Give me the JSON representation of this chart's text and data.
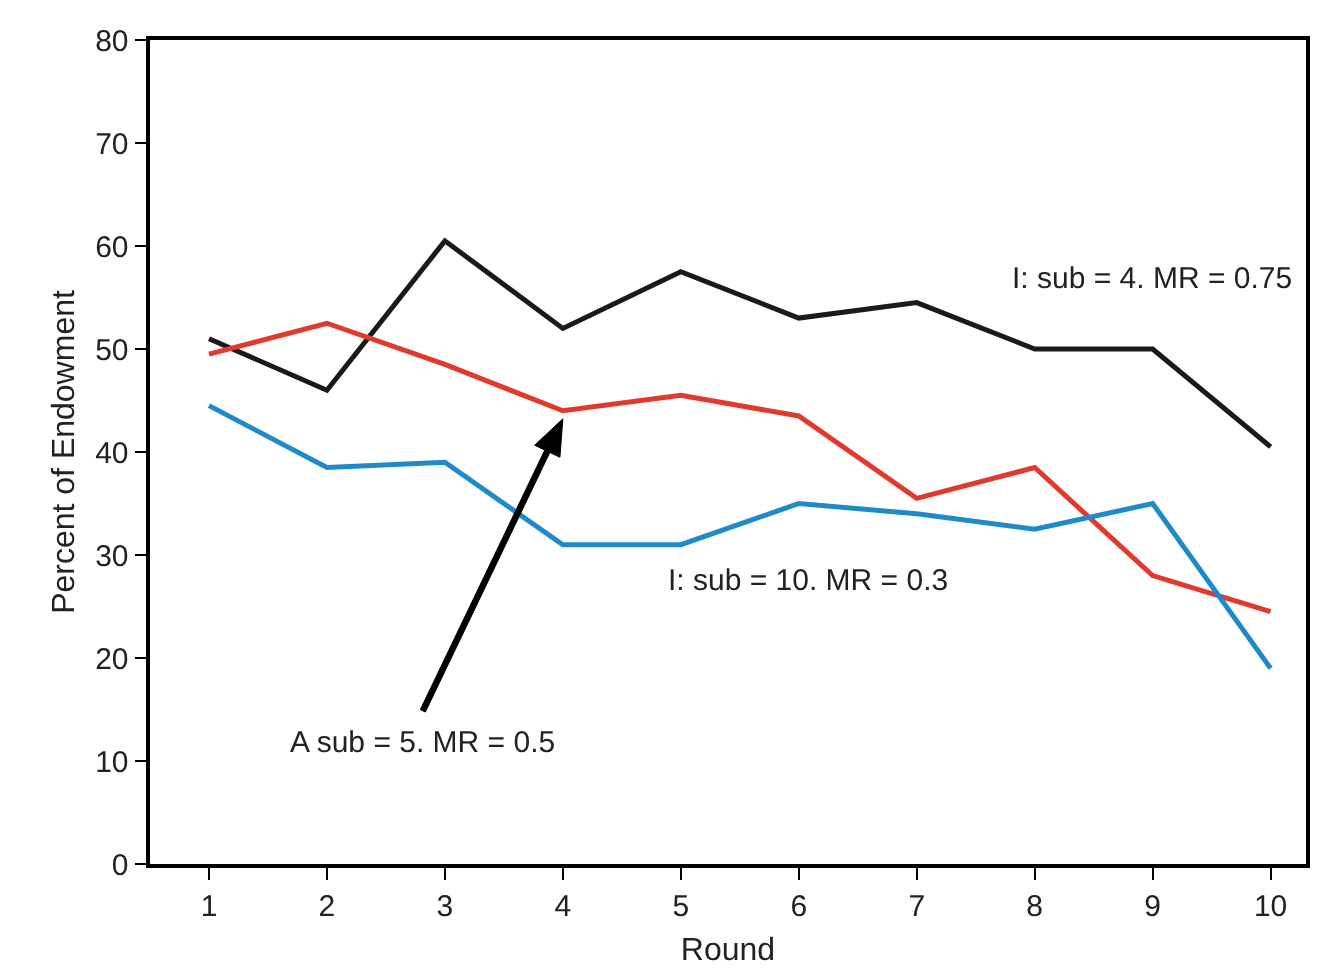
{
  "chart_data": {
    "type": "line",
    "xlabel": "Round",
    "ylabel": "Percent of Endowment",
    "x": [
      1,
      2,
      3,
      4,
      5,
      6,
      7,
      8,
      9,
      10
    ],
    "xlim": [
      0.5,
      10.3
    ],
    "xticks": [
      1,
      2,
      3,
      4,
      5,
      6,
      7,
      8,
      9,
      10
    ],
    "ylim": [
      0,
      80
    ],
    "yticks": [
      0,
      10,
      20,
      30,
      40,
      50,
      60,
      70,
      80
    ],
    "annotations": [
      "A sub = 5. MR = 0.5"
    ],
    "legend": false,
    "marker": "none",
    "line_style": "solid",
    "series": [
      {
        "name": "I: sub = 4. MR = 0.75",
        "color": "#1a1a1a",
        "values": [
          51,
          46,
          60.5,
          52,
          57.5,
          53,
          54.5,
          50,
          50,
          40.5
        ]
      },
      {
        "color": "#e03a2f",
        "values": [
          49.5,
          52.5,
          48.5,
          44,
          45.5,
          43.5,
          35.5,
          38.5,
          28,
          24.5
        ]
      },
      {
        "name": "I: sub = 10. MR = 0.3",
        "color": "#1f8ac9",
        "values": [
          44.5,
          38.5,
          39,
          31,
          31,
          35,
          34,
          32.5,
          35,
          19
        ]
      }
    ]
  }
}
